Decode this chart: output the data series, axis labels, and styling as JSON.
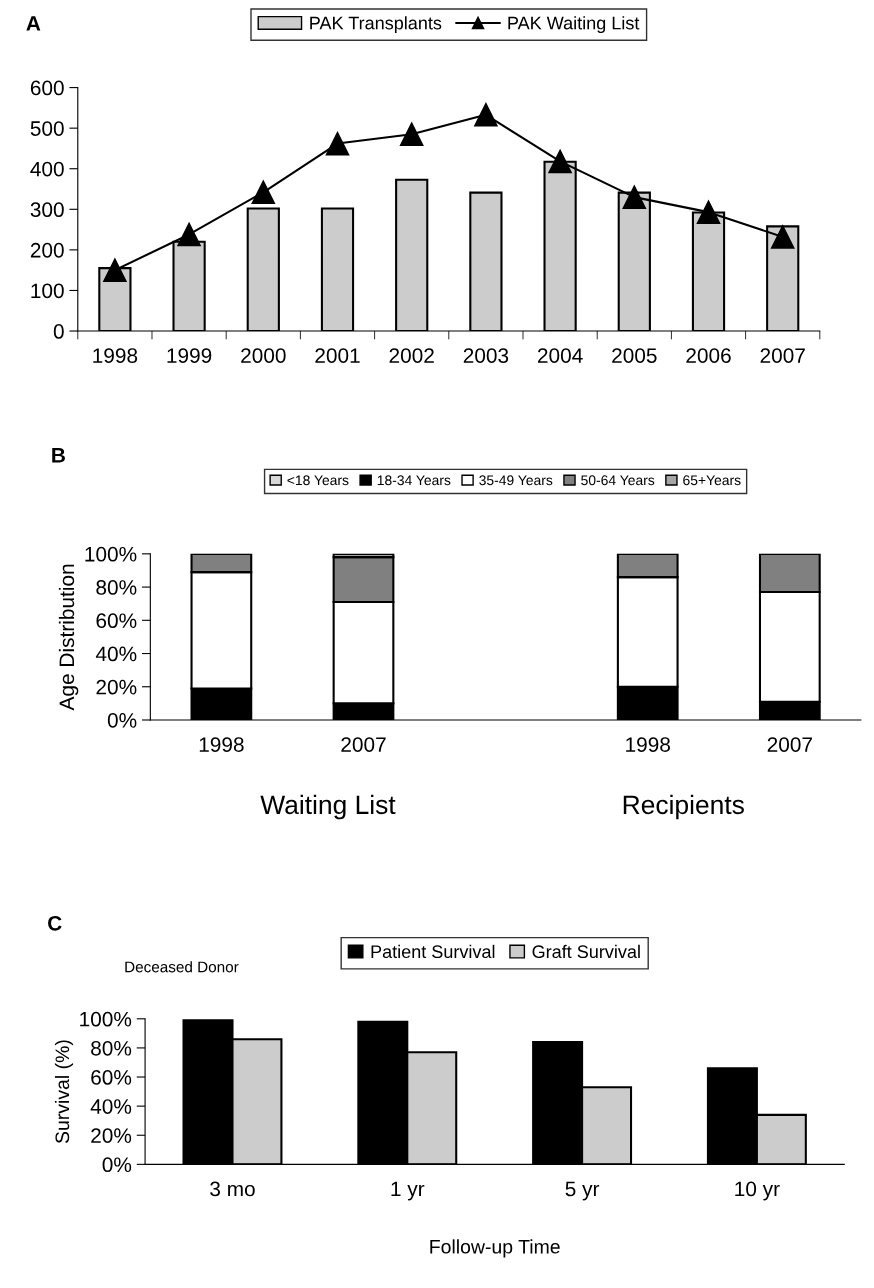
{
  "chart_data": [
    {
      "type": "bar",
      "title": "A",
      "categories": [
        "1998",
        "1999",
        "2000",
        "2001",
        "2002",
        "2003",
        "2004",
        "2005",
        "2006",
        "2007"
      ],
      "series": [
        {
          "name": "PAK Transplants",
          "color": "#cccccc",
          "values": [
            155,
            220,
            302,
            302,
            373,
            341,
            417,
            341,
            292,
            258
          ]
        },
        {
          "name": "PAK Waiting List",
          "type": "line",
          "color": "#000000",
          "marker": "triangle",
          "line_style": "solid",
          "values": [
            150,
            238,
            342,
            462,
            485,
            533,
            418,
            330,
            293,
            232
          ]
        }
      ],
      "ylim": [
        0,
        600
      ],
      "yticks": [
        0,
        100,
        200,
        300,
        400,
        500,
        600
      ],
      "grid": false,
      "legend": "top"
    },
    {
      "type": "bar",
      "title": "B",
      "stacked": true,
      "ylabel": "Age Distribution",
      "categories": [
        "1998",
        "2007",
        null,
        "1998",
        "2007"
      ],
      "series": [
        {
          "name": "<18 Years",
          "color": "#d9d9d9",
          "values": [
            null,
            null,
            null,
            null,
            null
          ]
        },
        {
          "name": "18-34 Years",
          "color": "#000000",
          "values": [
            19,
            10,
            null,
            20,
            11
          ]
        },
        {
          "name": "35-49 Years",
          "color": "#ffffff",
          "values": [
            70,
            61,
            null,
            66,
            66
          ]
        },
        {
          "name": "50-64 Years",
          "color": "#808080",
          "values": [
            11,
            27,
            null,
            14,
            23
          ]
        },
        {
          "name": "65+Years",
          "color": "#a6a6a6",
          "values": [
            null,
            2,
            null,
            null,
            null
          ]
        }
      ],
      "ylim": [
        0,
        100
      ],
      "yticks": [
        {
          "value": 0,
          "label": "0%"
        },
        {
          "value": 20,
          "label": "20%"
        },
        {
          "value": 40,
          "label": "40%"
        },
        {
          "value": 60,
          "label": "60%"
        },
        {
          "value": 80,
          "label": "80%"
        },
        {
          "value": 100,
          "label": "100%"
        }
      ],
      "annotations": [
        "Waiting List",
        "Recipients"
      ],
      "grid": false,
      "legend": "top"
    },
    {
      "type": "bar",
      "title": "C",
      "subtitle": "Deceased Donor",
      "xlabel": "Follow-up Time",
      "ylabel": "Survival (%)",
      "categories": [
        "3 mo",
        "1 yr",
        "5 yr",
        "10 yr"
      ],
      "series": [
        {
          "name": "Patient Survival",
          "color": "#000000",
          "values": [
            99,
            98,
            84,
            66
          ]
        },
        {
          "name": "Graft Survival",
          "color": "#cccccc",
          "values": [
            86,
            77,
            53,
            34
          ]
        }
      ],
      "ylim": [
        0,
        100
      ],
      "yticks": [
        {
          "value": 0,
          "label": "0%"
        },
        {
          "value": 20,
          "label": "20%"
        },
        {
          "value": 40,
          "label": "40%"
        },
        {
          "value": 60,
          "label": "60%"
        },
        {
          "value": 80,
          "label": "80%"
        },
        {
          "value": 100,
          "label": "100%"
        }
      ],
      "grid": false,
      "legend": "top"
    }
  ]
}
